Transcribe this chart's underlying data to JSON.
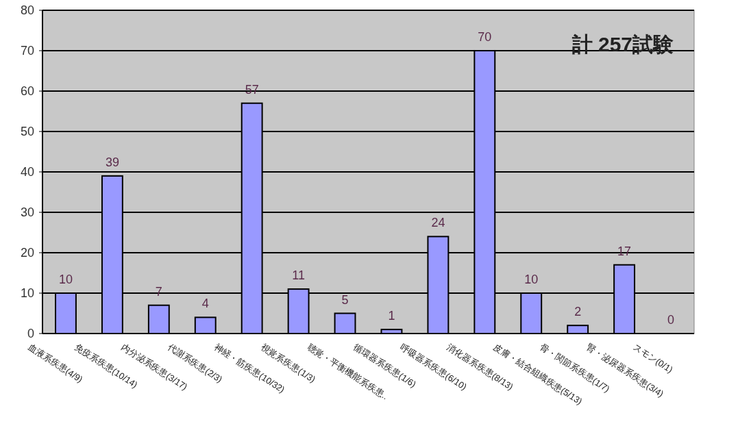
{
  "chart_data": {
    "type": "bar",
    "categories": [
      "血液系疾患(4/9)",
      "免疫系疾患(10/14)",
      "内分泌系疾患(3/17)",
      "代謝系疾患(2/3)",
      "神経・筋疾患(10/32)",
      "視覚系疾患(1/3)",
      "聴覚・平衡機能系疾患..",
      "循環器系疾患(1/6)",
      "呼吸器系疾患(6/10)",
      "消化器系疾患(8/13)",
      "皮膚・結合組織疾患(5/13)",
      "骨・関節系疾患(1/7)",
      "腎・泌尿器系疾患(3/4)",
      "スモン(0/1)"
    ],
    "values": [
      10,
      39,
      7,
      4,
      57,
      11,
      5,
      1,
      24,
      70,
      10,
      2,
      17,
      0
    ],
    "color": "#9999ff",
    "ylim": [
      0,
      80
    ],
    "yticks": [
      0,
      10,
      20,
      30,
      40,
      50,
      60,
      70,
      80
    ],
    "grid": "y",
    "data_labels": true,
    "annotations": [
      "計 257試験"
    ]
  }
}
